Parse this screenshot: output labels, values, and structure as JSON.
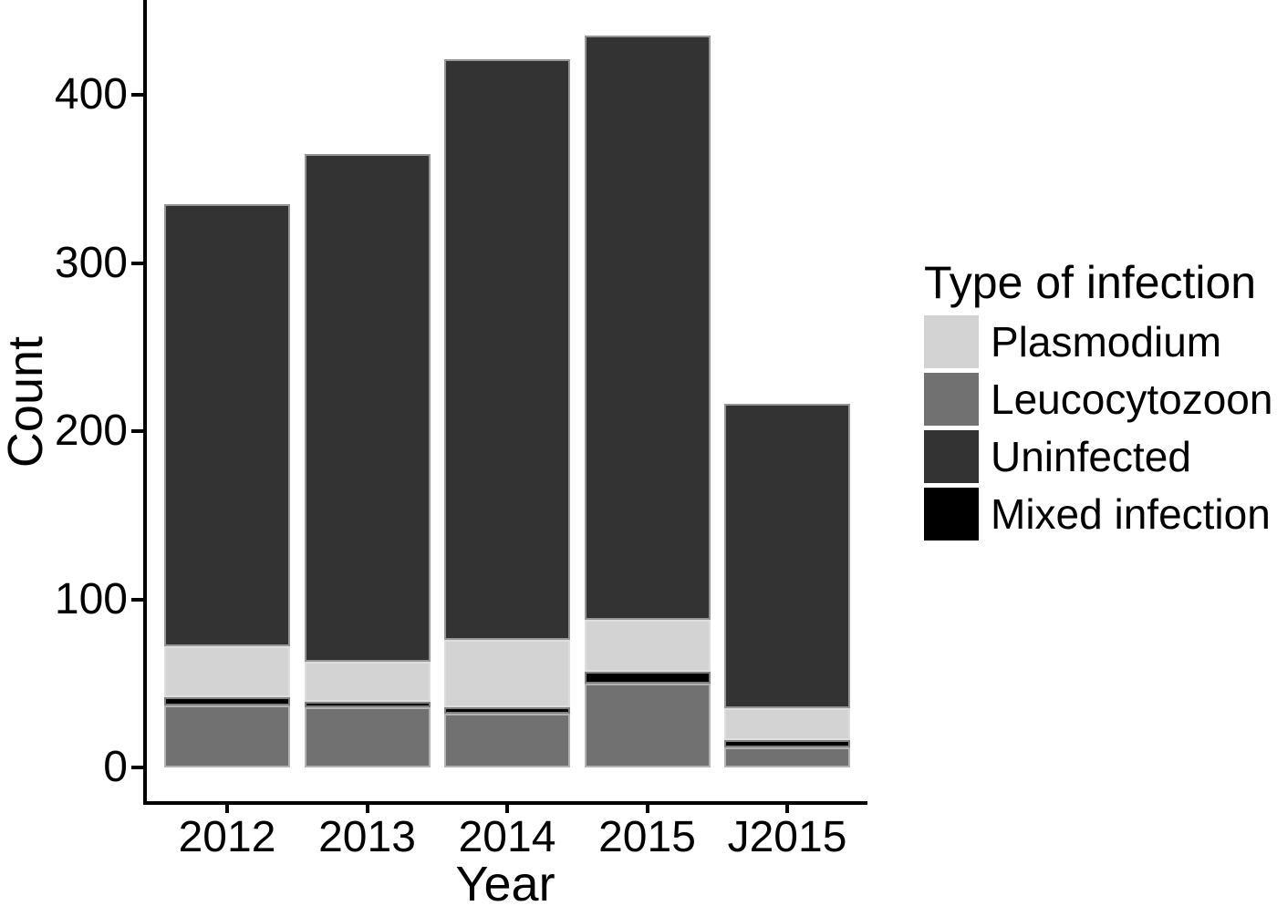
{
  "figure": {
    "background": "#ffffff",
    "text_color": "#000000"
  },
  "chart_data": {
    "type": "bar",
    "stacked": true,
    "title": "",
    "xlabel": "Year",
    "ylabel": "Count",
    "categories": [
      "2012",
      "2013",
      "2014",
      "2015",
      "J2015"
    ],
    "series": [
      {
        "name": "Plasmodium",
        "color": "#d3d3d3",
        "values": [
          30,
          24,
          40,
          31,
          19
        ]
      },
      {
        "name": "Leucocytozoon",
        "color": "#717171",
        "values": [
          37,
          36,
          32,
          50,
          12
        ]
      },
      {
        "name": "Uninfected",
        "color": "#333333",
        "values": [
          263,
          302,
          345,
          347,
          181
        ]
      },
      {
        "name": "Mixed infection",
        "color": "#000000",
        "values": [
          5,
          3,
          4,
          7,
          4
        ]
      }
    ],
    "totals": [
      335,
      365,
      421,
      435,
      216
    ],
    "stack_order_bottom_to_top": [
      "Leucocytozoon",
      "Mixed infection",
      "Plasmodium",
      "Uninfected"
    ],
    "yticks": [
      0,
      100,
      200,
      300,
      400
    ],
    "ylim": [
      0,
      460
    ],
    "grid": "off",
    "legend": {
      "title": "Type of infection",
      "position": "right",
      "order": [
        "Plasmodium",
        "Leucocytozoon",
        "Uninfected",
        "Mixed infection"
      ]
    }
  }
}
